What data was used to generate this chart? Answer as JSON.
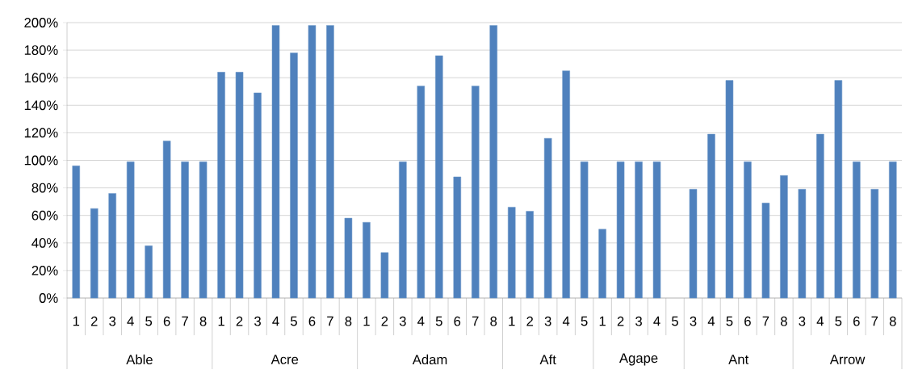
{
  "chart_data": {
    "type": "bar",
    "categories": [
      "1",
      "2",
      "3",
      "4",
      "5",
      "6",
      "7",
      "8",
      "1",
      "2",
      "3",
      "4",
      "5",
      "6",
      "7",
      "8",
      "1",
      "2",
      "3",
      "4",
      "5",
      "6",
      "7",
      "8",
      "1",
      "2",
      "3",
      "4",
      "5",
      "1",
      "2",
      "3",
      "4",
      "5",
      "3",
      "4",
      "5",
      "6",
      "7",
      "8",
      "3",
      "4",
      "5",
      "6",
      "7",
      "8"
    ],
    "values": [
      96,
      65,
      76,
      99,
      38,
      114,
      99,
      99,
      164,
      164,
      149,
      198,
      178,
      198,
      198,
      58,
      55,
      33,
      99,
      154,
      176,
      88,
      154,
      198,
      66,
      63,
      116,
      165,
      99,
      50,
      99,
      99,
      99,
      null,
      79,
      119,
      158,
      99,
      69,
      89,
      79,
      119,
      158,
      99,
      79,
      99
    ],
    "color": "#4f81bd",
    "ylim": [
      0,
      200
    ],
    "yticks": [
      {
        "value": 0,
        "label": "0%"
      },
      {
        "value": 20,
        "label": "20%"
      },
      {
        "value": 40,
        "label": "40%"
      },
      {
        "value": 60,
        "label": "60%"
      },
      {
        "value": 80,
        "label": "80%"
      },
      {
        "value": 100,
        "label": "100%"
      },
      {
        "value": 120,
        "label": "120%"
      },
      {
        "value": 140,
        "label": "140%"
      },
      {
        "value": 160,
        "label": "160%"
      },
      {
        "value": 180,
        "label": "180%"
      },
      {
        "value": 200,
        "label": "200%"
      }
    ],
    "grid": "y",
    "annotations": [
      "Able",
      "Acre",
      "Adam",
      "Aft",
      "Agape",
      "Ant",
      "Arrow"
    ]
  }
}
